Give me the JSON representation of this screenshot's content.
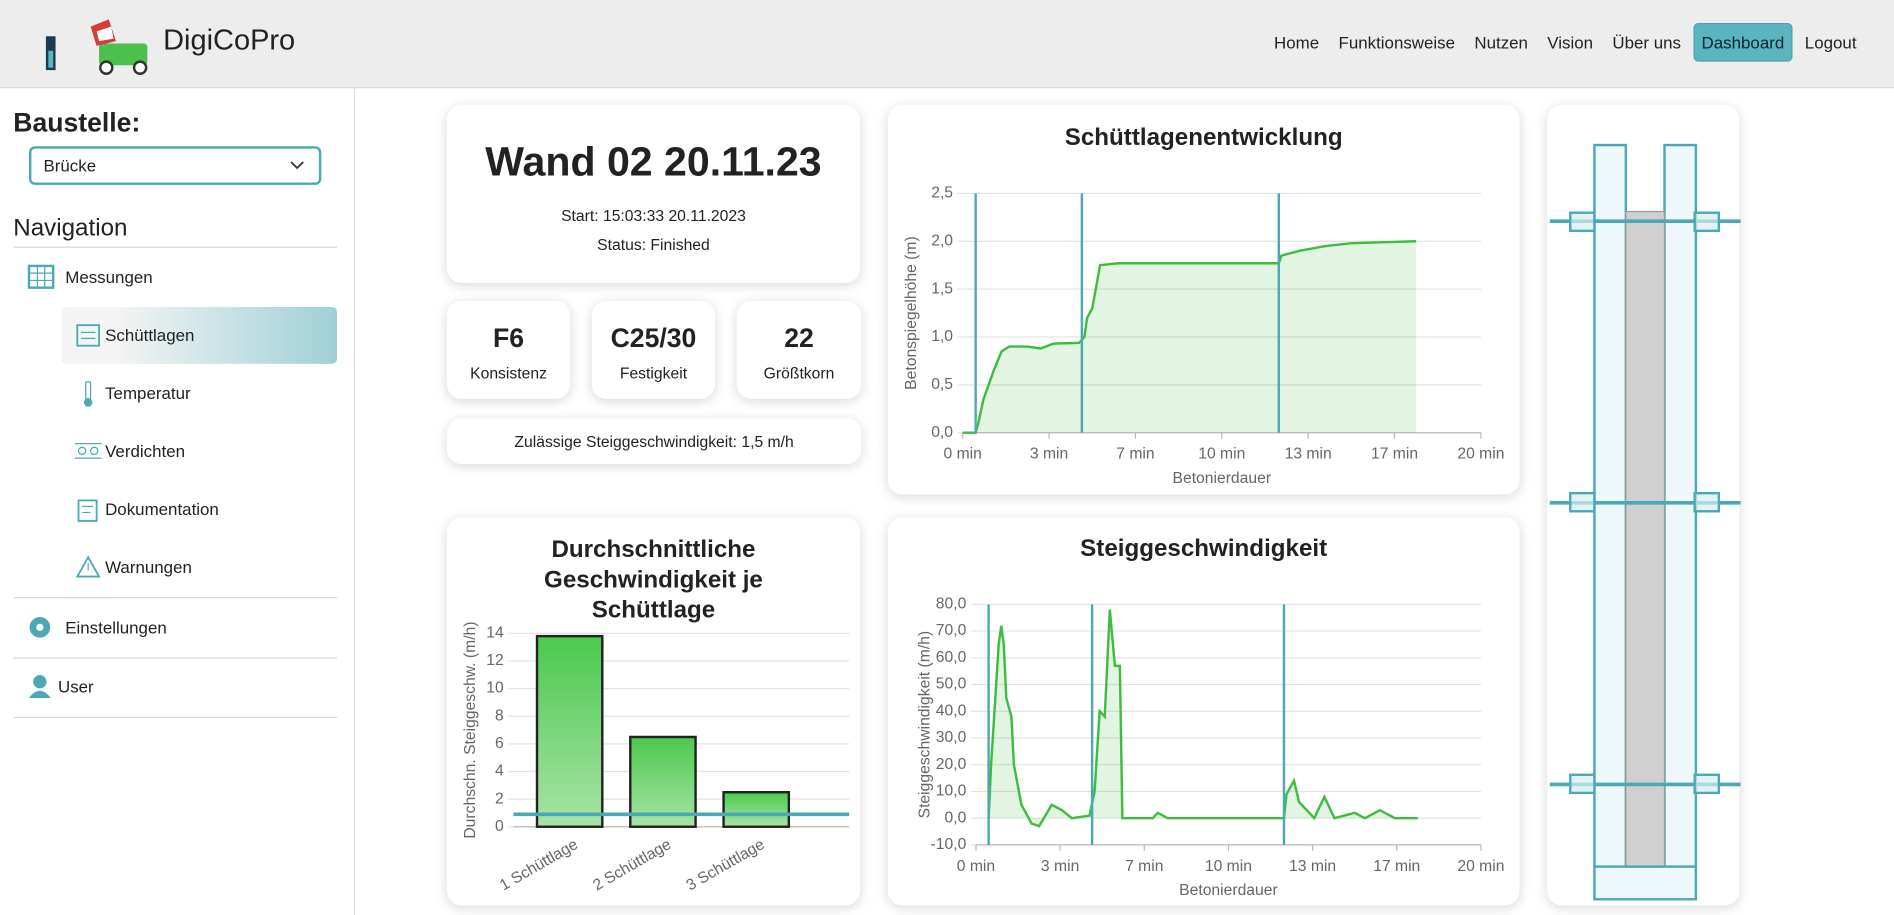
{
  "header": {
    "brand": "DigiCoPro",
    "nav": [
      "Home",
      "Funktionsweise",
      "Nutzen",
      "Vision",
      "Über uns",
      "Dashboard",
      "Logout"
    ]
  },
  "sidebar": {
    "site_label": "Baustelle:",
    "site": "Brücke",
    "nav_title": "Navigation",
    "items": [
      "Messungen",
      "Schüttlagen",
      "Temperatur",
      "Verdichten",
      "Dokumentation",
      "Warnungen",
      "Einstellungen",
      "User"
    ]
  },
  "summary": {
    "title": "Wand 02 20.11.23",
    "start": "Start: 15:03:33 20.11.2023",
    "status": "Status: Finished"
  },
  "specs": [
    {
      "value": "F6",
      "label": "Konsistenz"
    },
    {
      "value": "C25/30",
      "label": "Festigkeit"
    },
    {
      "value": 22,
      "label": "Größtkorn"
    }
  ],
  "limit": "Zulässige Steiggeschwindigkeit: 1,5 m/h",
  "chart_data": [
    {
      "type": "line",
      "title": "Schüttlagenentwicklung",
      "x_label": "Betonierdauer",
      "y_label": "Betonspiegelhöhe (m)",
      "x": [
        0,
        0.5,
        0.6,
        0.8,
        1.0,
        1.2,
        1.5,
        1.8,
        2.5,
        3,
        3.5,
        4.5,
        4.7,
        4.8,
        5.0,
        5.3,
        6,
        10,
        12.2,
        12.3,
        13,
        14,
        15,
        17.5
      ],
      "values": [
        0,
        0,
        0.1,
        0.35,
        0.5,
        0.65,
        0.85,
        0.9,
        0.9,
        0.88,
        0.93,
        0.94,
        1.0,
        1.2,
        1.3,
        1.75,
        1.77,
        1.77,
        1.77,
        1.85,
        1.9,
        1.95,
        1.98,
        2.0
      ],
      "color": "#3dbd3d",
      "markers": [
        0.5,
        4.6,
        12.2
      ],
      "marker_color": "#4aa9b4",
      "xlim": [
        0,
        20
      ],
      "ylim": [
        0,
        2.5
      ],
      "xticks": [
        {
          "value": 0,
          "label": "0 min"
        },
        {
          "value": 3.333,
          "label": "3 min"
        },
        {
          "value": 6.667,
          "label": "7 min"
        },
        {
          "value": 10,
          "label": "10 min"
        },
        {
          "value": 13.333,
          "label": "13 min"
        },
        {
          "value": 16.667,
          "label": "17 min"
        },
        {
          "value": 20,
          "label": "20 min"
        }
      ],
      "yticks": [
        {
          "value": 0,
          "label": "0,0"
        },
        {
          "value": 0.5,
          "label": "0,5"
        },
        {
          "value": 1,
          "label": "1,0"
        },
        {
          "value": 1.5,
          "label": "1,5"
        },
        {
          "value": 2,
          "label": "2,0"
        },
        {
          "value": 2.5,
          "label": "2,5"
        }
      ],
      "grid": true
    },
    {
      "type": "line",
      "title": "Steiggeschwindigkeit",
      "x_label": "Betonierdauer",
      "y_label": "Steiggeschwindigkeit (m/h)",
      "x": [
        0.5,
        0.6,
        0.7,
        0.8,
        0.9,
        1.0,
        1.1,
        1.2,
        1.4,
        1.5,
        1.8,
        2.2,
        2.5,
        3,
        3.4,
        3.8,
        4.5,
        4.7,
        4.9,
        5.1,
        5.3,
        5.5,
        5.7,
        5.8,
        7,
        7.2,
        7.6,
        12.2,
        12.3,
        12.6,
        12.8,
        13.4,
        13.8,
        14.2,
        15,
        15.4,
        16,
        16.6,
        17.5
      ],
      "values": [
        0,
        20,
        35,
        50,
        65,
        72,
        65,
        45,
        38,
        20,
        5,
        -2,
        -3,
        5,
        3,
        0,
        1,
        10,
        40,
        38,
        78,
        57,
        57,
        0,
        0,
        2,
        0,
        0,
        9,
        14,
        6,
        0,
        8,
        0,
        2,
        0,
        3,
        0,
        0
      ],
      "color": "#3dbd3d",
      "markers": [
        0.5,
        4.6,
        12.2
      ],
      "marker_color": "#4aa9b4",
      "xlim": [
        0,
        20
      ],
      "ylim": [
        -10,
        80
      ],
      "xticks": [
        {
          "value": 0,
          "label": "0 min"
        },
        {
          "value": 3.333,
          "label": "3 min"
        },
        {
          "value": 6.667,
          "label": "7 min"
        },
        {
          "value": 10,
          "label": "10 min"
        },
        {
          "value": 13.333,
          "label": "13 min"
        },
        {
          "value": 16.667,
          "label": "17 min"
        },
        {
          "value": 20,
          "label": "20 min"
        }
      ],
      "yticks": [
        {
          "value": -10,
          "label": "-10,0"
        },
        {
          "value": 0,
          "label": "0,0"
        },
        {
          "value": 10,
          "label": "10,0"
        },
        {
          "value": 20,
          "label": "20,0"
        },
        {
          "value": 30,
          "label": "30,0"
        },
        {
          "value": 40,
          "label": "40,0"
        },
        {
          "value": 50,
          "label": "50,0"
        },
        {
          "value": 60,
          "label": "60,0"
        },
        {
          "value": 70,
          "label": "70,0"
        },
        {
          "value": 80,
          "label": "80,0"
        }
      ],
      "grid": true
    },
    {
      "type": "bar",
      "title": "Durchschnittliche Geschwindigkeit je Schüttlage",
      "y_label": "Durchschn. Steiggeschw. (m/h)",
      "categories": [
        "1 Schüttlage",
        "2 Schüttlage",
        "3 Schüttlage"
      ],
      "values": [
        13.8,
        6.5,
        2.5
      ],
      "color": "#4cc94c",
      "reference_line": 0.9,
      "reference_color": "#4aa9b4",
      "ylim": [
        0,
        14
      ],
      "yticks": [
        0,
        2,
        4,
        6,
        8,
        10,
        12,
        14
      ],
      "grid": true
    }
  ]
}
